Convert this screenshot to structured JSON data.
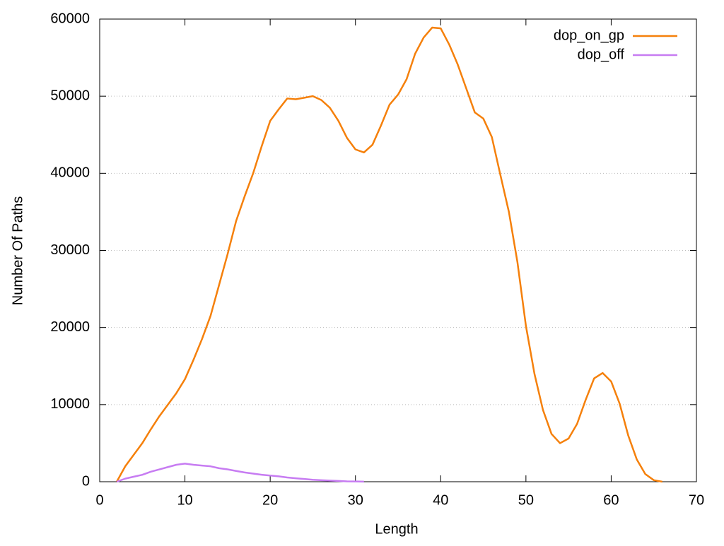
{
  "chart_data": {
    "type": "line",
    "xlabel": "Length",
    "ylabel": "Number Of Paths",
    "x": [
      2,
      3,
      4,
      5,
      6,
      7,
      8,
      9,
      10,
      11,
      12,
      13,
      14,
      15,
      16,
      17,
      18,
      19,
      20,
      21,
      22,
      23,
      24,
      25,
      26,
      27,
      28,
      29,
      30,
      31,
      32,
      33,
      34,
      35,
      36,
      37,
      38,
      39,
      40,
      41,
      42,
      43,
      44,
      45,
      46,
      47,
      48,
      49,
      50,
      51,
      52,
      53,
      54,
      55,
      56,
      57,
      58,
      59,
      60,
      61,
      62,
      63,
      64,
      65,
      66
    ],
    "series": [
      {
        "name": "dop_on_gp",
        "color": "#f5800b",
        "values": [
          0,
          2000,
          3500,
          5000,
          6800,
          8500,
          10000,
          11500,
          13300,
          15800,
          18500,
          21500,
          25500,
          29500,
          33800,
          37000,
          40000,
          43500,
          46800,
          48300,
          49700,
          49600,
          49800,
          50000,
          49500,
          48500,
          46800,
          44600,
          43100,
          42700,
          43700,
          46200,
          48900,
          50200,
          52200,
          55500,
          57600,
          58900,
          58800,
          56700,
          54100,
          51000,
          47900,
          47100,
          44700,
          39800,
          35000,
          28500,
          20200,
          14000,
          9300,
          6200,
          5000,
          5600,
          7500,
          10600,
          13400,
          14100,
          13000,
          10100,
          6000,
          2900,
          1000,
          200,
          0
        ]
      },
      {
        "name": "dop_off",
        "color": "#c77cf2",
        "values": [
          0,
          400,
          650,
          900,
          1300,
          1600,
          1900,
          2200,
          2350,
          2200,
          2100,
          2000,
          1750,
          1600,
          1400,
          1200,
          1050,
          900,
          800,
          700,
          550,
          450,
          350,
          250,
          200,
          150,
          100,
          50,
          30,
          10,
          null,
          null,
          null,
          null,
          null,
          null,
          null,
          null,
          null,
          null,
          null,
          null,
          null,
          null,
          null,
          null,
          null,
          null,
          null,
          null,
          null,
          null,
          null,
          null,
          null,
          null,
          null,
          null,
          null,
          null,
          null,
          null,
          null,
          null,
          null
        ]
      }
    ],
    "xlim": [
      0,
      70
    ],
    "xticks": [
      0,
      10,
      20,
      30,
      40,
      50,
      60,
      70
    ],
    "ylim": [
      0,
      60000
    ],
    "yticks": [
      0,
      10000,
      20000,
      30000,
      40000,
      50000,
      60000
    ],
    "grid": true,
    "legend": "top-right"
  }
}
